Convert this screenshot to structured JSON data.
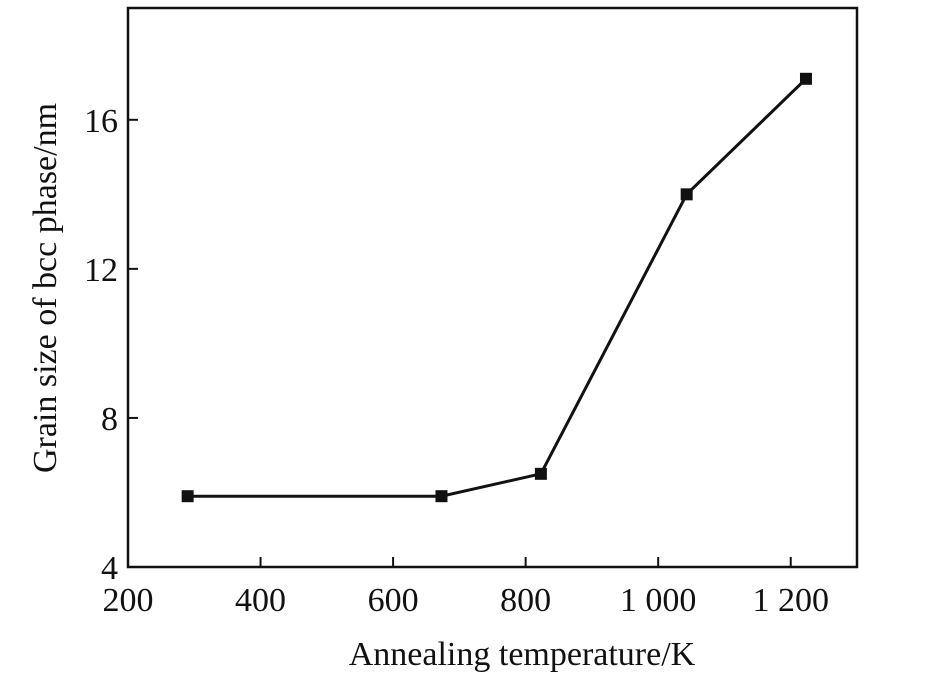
{
  "chart_data": {
    "type": "line",
    "xlabel": "Annealing temperature/K",
    "ylabel": "Grain size of bcc phase/nm",
    "xlim": [
      200,
      1300
    ],
    "ylim": [
      4,
      19
    ],
    "x_ticks": [
      200,
      400,
      600,
      800,
      1000,
      1200
    ],
    "x_tick_labels": [
      "200",
      "400",
      "600",
      "800",
      "1 000",
      "1 200"
    ],
    "y_ticks": [
      4,
      8,
      12,
      16
    ],
    "y_tick_labels": [
      "4",
      "8",
      "12",
      "16"
    ],
    "grid": false,
    "series": [
      {
        "x": [
          290,
          673,
          823,
          1043,
          1223
        ],
        "y": [
          5.9,
          5.9,
          6.5,
          14.0,
          17.1
        ],
        "marker": "square",
        "color": "#111111"
      }
    ]
  }
}
